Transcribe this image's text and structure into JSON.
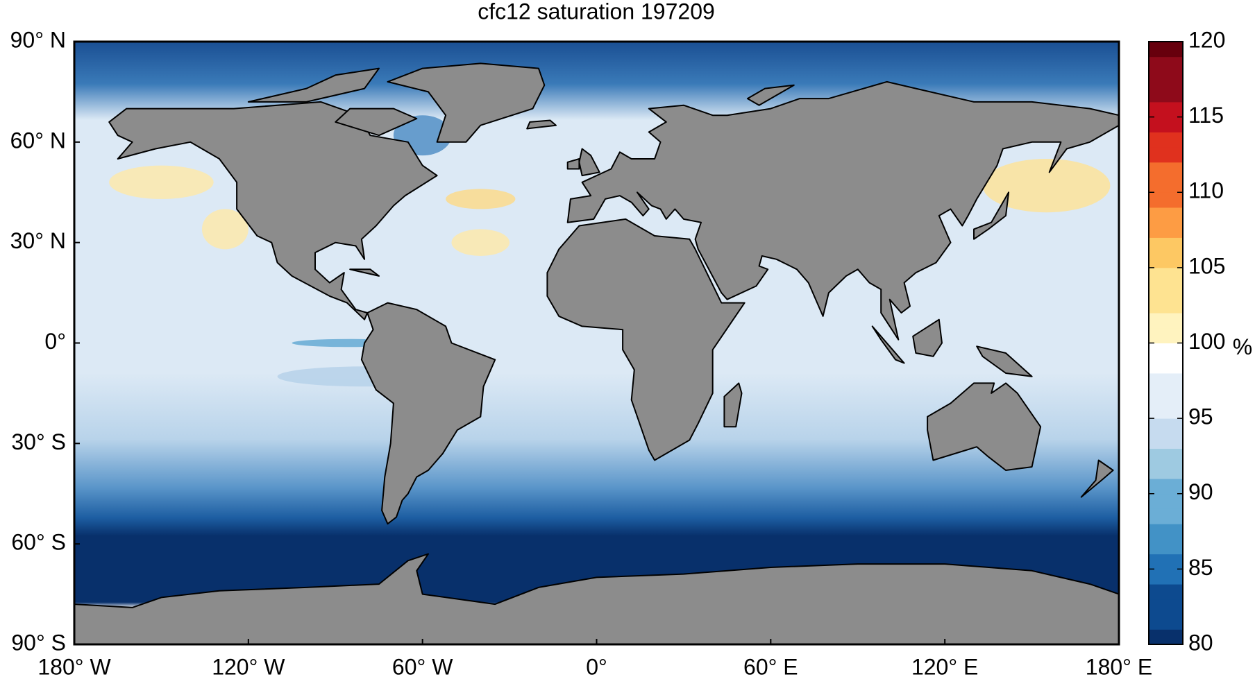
{
  "chart_data": {
    "type": "map",
    "title": "cfc12 saturation 197209",
    "xlim": [
      -180,
      180
    ],
    "ylim": [
      -90,
      90
    ],
    "xticks": [
      {
        "value": -180,
        "label": "180° W"
      },
      {
        "value": -120,
        "label": "120° W"
      },
      {
        "value": -60,
        "label": "60° W"
      },
      {
        "value": 0,
        "label": "0°"
      },
      {
        "value": 60,
        "label": "60° E"
      },
      {
        "value": 120,
        "label": "120° E"
      },
      {
        "value": 180,
        "label": "180° E"
      }
    ],
    "yticks": [
      {
        "value": 90,
        "label": "90° N"
      },
      {
        "value": 60,
        "label": "60° N"
      },
      {
        "value": 30,
        "label": "30° N"
      },
      {
        "value": 0,
        "label": "0°"
      },
      {
        "value": -30,
        "label": "30° S"
      },
      {
        "value": -60,
        "label": "60° S"
      },
      {
        "value": -90,
        "label": "90° S"
      }
    ],
    "colorbar": {
      "label": "%",
      "lim": [
        80,
        120
      ],
      "ticks": [
        80,
        85,
        90,
        95,
        100,
        105,
        110,
        115,
        120
      ],
      "colormap": [
        "#08306b",
        "#0d4a8f",
        "#2171b5",
        "#4292c6",
        "#6baed6",
        "#9ecae1",
        "#c6dbef",
        "#e4eef8",
        "#ffffff",
        "#fff3bf",
        "#fee391",
        "#fdc863",
        "#fd9c44",
        "#f46d2d",
        "#e0311e",
        "#c4101e",
        "#8e0a1a",
        "#67000d"
      ]
    }
  }
}
